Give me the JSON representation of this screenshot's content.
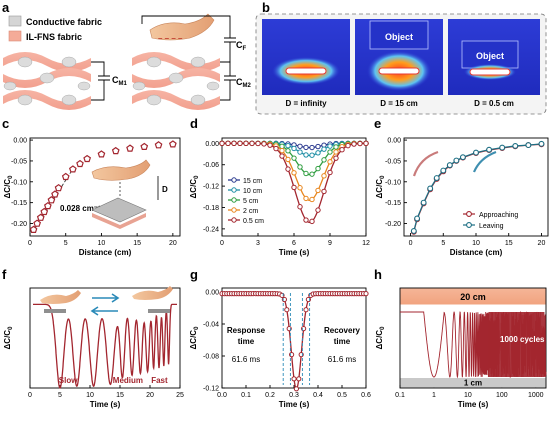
{
  "panels": {
    "a": {
      "label": "a",
      "legend": [
        "Conductive fabric",
        "IL-FNS fabric"
      ],
      "cap_labels": [
        "C",
        "C",
        "C"
      ],
      "cap_subs": [
        "M1",
        "M2",
        "F"
      ]
    },
    "b": {
      "label": "b",
      "object_label": "Object",
      "captions": [
        "D = infinity",
        "D = 15 cm",
        "D = 0.5 cm"
      ]
    },
    "c": {
      "label": "c"
    },
    "d": {
      "label": "d"
    },
    "e": {
      "label": "e"
    },
    "f": {
      "label": "f"
    },
    "g": {
      "label": "g"
    },
    "h": {
      "label": "h"
    }
  },
  "chart_data": [
    {
      "id": "c",
      "type": "scatter",
      "xlabel": "Distance (cm)",
      "ylabel": "ΔC/C0",
      "xlim": [
        0,
        21
      ],
      "ylim": [
        -0.23,
        0.005
      ],
      "xticks": [
        0,
        5,
        10,
        15,
        20
      ],
      "yticks": [
        0.0,
        -0.05,
        -0.1,
        -0.15,
        -0.2
      ],
      "x": [
        0.5,
        1,
        1.5,
        2,
        2.5,
        3,
        3.5,
        4,
        5,
        6,
        7,
        8,
        10,
        12,
        14,
        16,
        18,
        20
      ],
      "y": [
        -0.215,
        -0.2,
        -0.186,
        -0.172,
        -0.158,
        -0.144,
        -0.13,
        -0.115,
        -0.088,
        -0.07,
        -0.057,
        -0.045,
        -0.034,
        -0.026,
        -0.02,
        -0.016,
        -0.012,
        -0.01
      ],
      "annotation": "0.028 cm⁻¹",
      "color": "#a3262f",
      "marker": "pentagon",
      "D_label": "D"
    },
    {
      "id": "d",
      "type": "line",
      "xlabel": "Time (s)",
      "ylabel": "ΔC/C0",
      "xlim": [
        0,
        12
      ],
      "ylim": [
        -0.26,
        0.015
      ],
      "xticks": [
        0,
        3,
        6,
        9,
        12
      ],
      "yticks": [
        0.0,
        -0.06,
        -0.12,
        -0.18,
        -0.24
      ],
      "series": [
        {
          "name": "15 cm",
          "color": "#2b3a8f",
          "depth": 0.012,
          "width": 1.3
        },
        {
          "name": "10 cm",
          "color": "#1f8fa6",
          "depth": 0.034,
          "width": 1.4
        },
        {
          "name": "5 cm",
          "color": "#2f9d3f",
          "depth": 0.088,
          "width": 1.5
        },
        {
          "name": "2 cm",
          "color": "#e8861e",
          "depth": 0.16,
          "width": 1.6
        },
        {
          "name": "0.5 cm",
          "color": "#a3262f",
          "depth": 0.222,
          "width": 1.7
        }
      ],
      "center": 7.3
    },
    {
      "id": "e",
      "type": "line",
      "xlabel": "Distance (cm)",
      "ylabel": "ΔC/C0",
      "xlim": [
        -1,
        21
      ],
      "ylim": [
        -0.23,
        0.005
      ],
      "xticks": [
        0,
        5,
        10,
        15,
        20
      ],
      "yticks": [
        0.0,
        -0.05,
        -0.1,
        -0.15,
        -0.2
      ],
      "series": [
        {
          "name": "Approaching",
          "color": "#a3262f",
          "x": [
            0.5,
            1,
            2,
            3,
            4,
            5,
            6,
            7,
            8,
            10,
            12,
            14,
            16,
            18,
            20
          ],
          "y": [
            -0.22,
            -0.19,
            -0.152,
            -0.118,
            -0.093,
            -0.075,
            -0.061,
            -0.05,
            -0.042,
            -0.031,
            -0.024,
            -0.019,
            -0.015,
            -0.012,
            -0.01
          ]
        },
        {
          "name": "Leaving",
          "color": "#1d6f84",
          "x": [
            0.5,
            1,
            2,
            3,
            4,
            5,
            6,
            7,
            8,
            10,
            12,
            14,
            16,
            18,
            20
          ],
          "y": [
            -0.218,
            -0.188,
            -0.15,
            -0.116,
            -0.091,
            -0.073,
            -0.06,
            -0.049,
            -0.041,
            -0.03,
            -0.023,
            -0.018,
            -0.014,
            -0.012,
            -0.009
          ]
        }
      ]
    },
    {
      "id": "f",
      "type": "line",
      "xlabel": "Time (s)",
      "ylabel": "ΔC/C0",
      "xlim": [
        0,
        25
      ],
      "xticks": [
        0,
        5,
        10,
        15,
        20,
        25
      ],
      "ylim": [
        -1,
        0.1
      ],
      "dip_times": [
        5.0,
        7.8,
        10.6,
        13.4,
        15.4,
        17.0,
        18.4,
        19.6,
        20.6,
        21.5,
        22.3,
        23.1
      ],
      "dip_widths": [
        0.9,
        0.9,
        0.9,
        0.9,
        0.55,
        0.5,
        0.45,
        0.4,
        0.3,
        0.28,
        0.25,
        0.22
      ],
      "dip_depths": [
        0.92,
        0.9,
        0.9,
        0.88,
        0.8,
        0.78,
        0.76,
        0.74,
        0.7,
        0.7,
        0.68,
        0.66
      ],
      "annotations": [
        "Slow",
        "Medium",
        "Fast"
      ],
      "color": "#a3262f"
    },
    {
      "id": "g",
      "type": "line",
      "xlabel": "Time (s)",
      "ylabel": "ΔC/C0",
      "xlim": [
        0,
        0.6
      ],
      "ylim": [
        -0.12,
        0.005
      ],
      "xticks": [
        0.0,
        0.1,
        0.2,
        0.3,
        0.4,
        0.5,
        0.6
      ],
      "yticks": [
        0.0,
        -0.04,
        -0.08,
        -0.12
      ],
      "dip_center": 0.31,
      "dip_depth": 0.119,
      "annotations": [
        "Response",
        "time",
        "61.6 ms",
        "Recovery",
        "time",
        "61.6 ms"
      ],
      "color": "#a3262f"
    },
    {
      "id": "h",
      "type": "line",
      "xlabel": "Time (s)",
      "ylabel": "ΔC/C0",
      "xscale": "log",
      "xlim": [
        0.1,
        2000
      ],
      "xticks": [
        0.1,
        1,
        10,
        100,
        1000
      ],
      "xtick_labels": [
        "0.1",
        "1",
        "10",
        "100",
        "1000"
      ],
      "band_top": "20 cm",
      "band_bottom": "1 cm",
      "annotation": "1000 cycles",
      "color": "#a3262f"
    }
  ]
}
